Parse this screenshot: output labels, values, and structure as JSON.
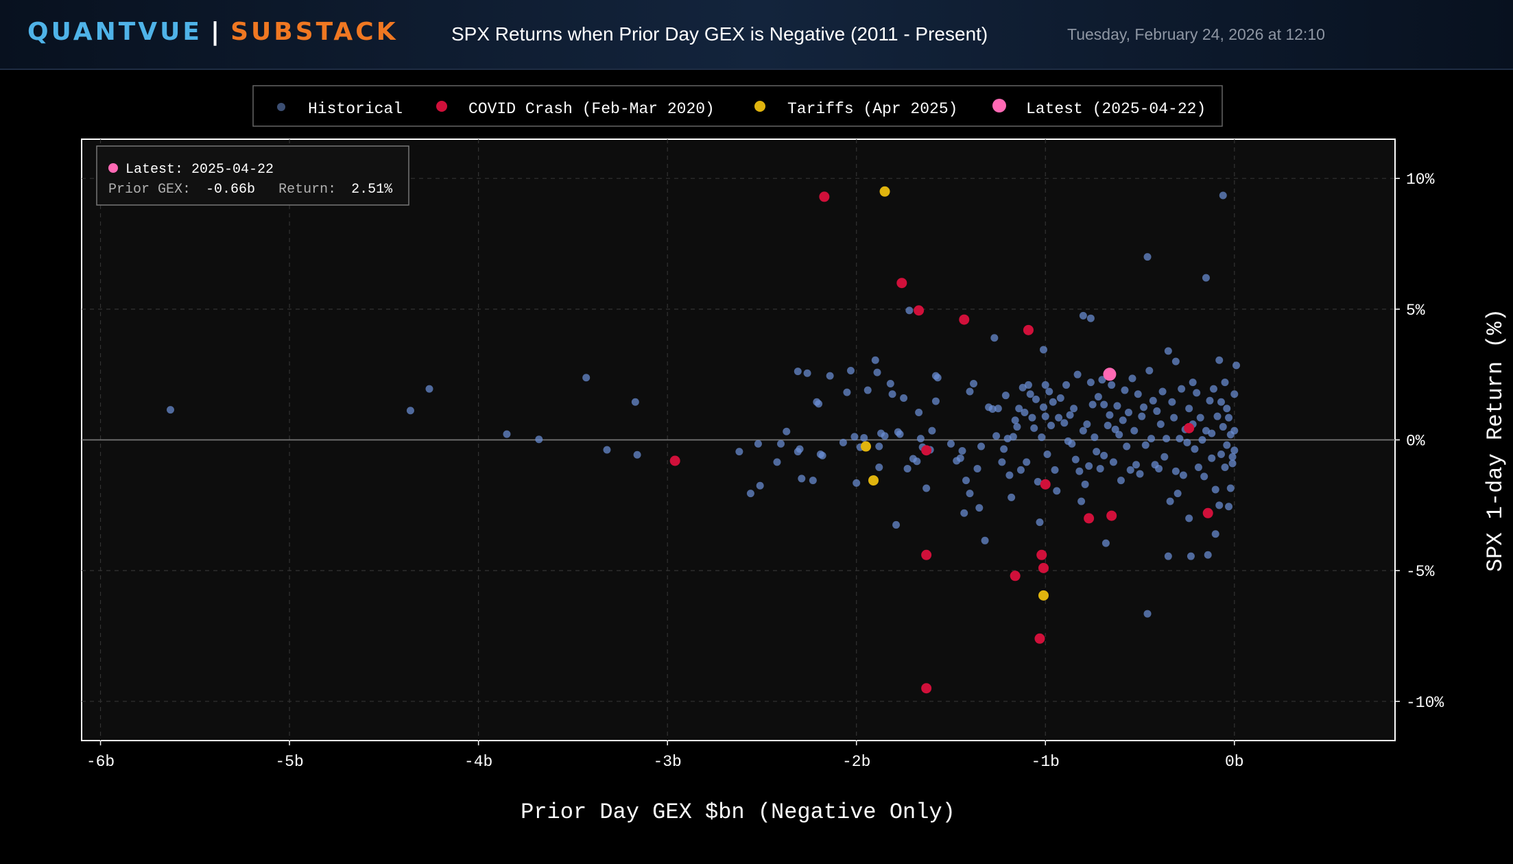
{
  "header": {
    "brand_primary": "QUANTVUE",
    "brand_separator": "|",
    "brand_secondary": "SUBSTACK",
    "title": "SPX Returns when Prior Day GEX is Negative (2011 - Present)",
    "timestamp": "Tuesday, February 24, 2026 at 12:10"
  },
  "colors": {
    "brand_primary": "#4fb3e8",
    "brand_secondary": "#f07822",
    "historical": "#6b8fd6",
    "covid": "#d0103a",
    "tariffs": "#e0b40e",
    "latest": "#ff69b4"
  },
  "chart_data": {
    "type": "scatter",
    "xlabel": "Prior Day GEX $bn (Negative Only)",
    "ylabel": "SPX 1-day Return (%)",
    "xlim": [
      -6.1,
      0.85
    ],
    "ylim": [
      -11.5,
      11.5
    ],
    "x_ticks": [
      -6,
      -5,
      -4,
      -3,
      -2,
      -1,
      0
    ],
    "x_tick_labels": [
      "-6b",
      "-5b",
      "-4b",
      "-3b",
      "-2b",
      "-1b",
      "0b"
    ],
    "y_ticks": [
      10,
      5,
      0,
      -5,
      -10
    ],
    "y_tick_labels": [
      "10%",
      "5%",
      "0%",
      "-5%",
      "-10%"
    ],
    "grid": true,
    "legend_position": "top-center",
    "annotation": {
      "title": "Latest: 2025-04-22",
      "gex_label": "Prior GEX:",
      "gex_value": "-0.66b",
      "return_label": "Return:",
      "return_value": "2.51%"
    },
    "series": [
      {
        "name": "Historical",
        "color": "#6b8fd6",
        "points": [
          [
            -5.63,
            1.15
          ],
          [
            -4.36,
            1.12
          ],
          [
            -4.26,
            1.95
          ],
          [
            -3.85,
            0.22
          ],
          [
            -3.68,
            0.02
          ],
          [
            -3.43,
            2.38
          ],
          [
            -3.32,
            -0.38
          ],
          [
            -3.17,
            1.45
          ],
          [
            -3.16,
            -0.57
          ],
          [
            -2.62,
            -0.45
          ],
          [
            -2.56,
            -2.05
          ],
          [
            -2.52,
            -0.15
          ],
          [
            -2.51,
            -1.75
          ],
          [
            -2.42,
            -0.85
          ],
          [
            -2.4,
            -0.15
          ],
          [
            -2.37,
            0.32
          ],
          [
            -2.31,
            -0.45
          ],
          [
            -2.31,
            2.62
          ],
          [
            -2.3,
            -0.35
          ],
          [
            -2.29,
            -1.48
          ],
          [
            -2.26,
            2.55
          ],
          [
            -2.23,
            -1.55
          ],
          [
            -2.21,
            1.45
          ],
          [
            -2.2,
            1.38
          ],
          [
            -2.19,
            -0.55
          ],
          [
            -2.18,
            -0.6
          ],
          [
            -2.14,
            2.45
          ],
          [
            -2.07,
            -0.1
          ],
          [
            -2.05,
            1.82
          ],
          [
            -2.03,
            2.65
          ],
          [
            -2.01,
            0.12
          ],
          [
            -2.0,
            -1.65
          ],
          [
            -1.98,
            -0.28
          ],
          [
            -1.96,
            0.08
          ],
          [
            -1.94,
            1.9
          ],
          [
            -1.9,
            3.05
          ],
          [
            -1.89,
            2.58
          ],
          [
            -1.88,
            -0.25
          ],
          [
            -1.88,
            -1.05
          ],
          [
            -1.87,
            0.25
          ],
          [
            -1.85,
            0.15
          ],
          [
            -1.82,
            2.15
          ],
          [
            -1.81,
            1.75
          ],
          [
            -1.79,
            -3.25
          ],
          [
            -1.78,
            0.3
          ],
          [
            -1.77,
            0.22
          ],
          [
            -1.75,
            1.6
          ],
          [
            -1.73,
            -1.1
          ],
          [
            -1.72,
            4.95
          ],
          [
            -1.7,
            -0.72
          ],
          [
            -1.68,
            -0.82
          ],
          [
            -1.67,
            1.05
          ],
          [
            -1.66,
            0.05
          ],
          [
            -1.65,
            -0.28
          ],
          [
            -1.63,
            -1.85
          ],
          [
            -1.61,
            -0.38
          ],
          [
            -1.6,
            0.35
          ],
          [
            -1.58,
            2.45
          ],
          [
            -1.58,
            1.48
          ],
          [
            -1.57,
            2.38
          ],
          [
            -1.5,
            -0.15
          ],
          [
            -1.47,
            -0.8
          ],
          [
            -1.45,
            -0.7
          ],
          [
            -1.44,
            -0.42
          ],
          [
            -1.43,
            -2.8
          ],
          [
            -1.42,
            -1.55
          ],
          [
            -1.4,
            1.85
          ],
          [
            -1.4,
            -2.05
          ],
          [
            -1.38,
            2.15
          ],
          [
            -1.36,
            -1.1
          ],
          [
            -1.35,
            -2.6
          ],
          [
            -1.34,
            -0.25
          ],
          [
            -1.32,
            -3.85
          ],
          [
            -1.3,
            1.25
          ],
          [
            -1.28,
            1.18
          ],
          [
            -1.27,
            3.9
          ],
          [
            -1.26,
            0.15
          ],
          [
            -1.25,
            1.2
          ],
          [
            -1.23,
            -0.85
          ],
          [
            -1.22,
            -0.35
          ],
          [
            -1.21,
            1.7
          ],
          [
            -1.2,
            0.05
          ],
          [
            -1.19,
            -1.35
          ],
          [
            -1.18,
            -2.2
          ],
          [
            -1.17,
            0.12
          ],
          [
            -1.16,
            0.75
          ],
          [
            -1.15,
            0.5
          ],
          [
            -1.14,
            1.2
          ],
          [
            -1.13,
            -1.15
          ],
          [
            -1.12,
            2.0
          ],
          [
            -1.11,
            1.05
          ],
          [
            -1.1,
            -0.85
          ],
          [
            -1.09,
            2.1
          ],
          [
            -1.08,
            1.75
          ],
          [
            -1.07,
            0.85
          ],
          [
            -1.06,
            0.45
          ],
          [
            -1.05,
            1.55
          ],
          [
            -1.04,
            -1.6
          ],
          [
            -1.03,
            -3.15
          ],
          [
            -1.02,
            0.1
          ],
          [
            -1.01,
            1.25
          ],
          [
            -1.01,
            3.45
          ],
          [
            -1.0,
            2.1
          ],
          [
            -1.0,
            0.9
          ],
          [
            -0.99,
            -0.55
          ],
          [
            -0.98,
            1.85
          ],
          [
            -0.97,
            0.55
          ],
          [
            -0.96,
            1.45
          ],
          [
            -0.95,
            -1.15
          ],
          [
            -0.94,
            -1.95
          ],
          [
            -0.93,
            0.85
          ],
          [
            -0.92,
            1.6
          ],
          [
            -0.9,
            0.65
          ],
          [
            -0.89,
            2.1
          ],
          [
            -0.88,
            -0.05
          ],
          [
            -0.87,
            0.95
          ],
          [
            -0.86,
            -0.15
          ],
          [
            -0.85,
            1.2
          ],
          [
            -0.84,
            -0.75
          ],
          [
            -0.83,
            2.5
          ],
          [
            -0.82,
            -1.2
          ],
          [
            -0.81,
            -2.35
          ],
          [
            -0.8,
            4.75
          ],
          [
            -0.8,
            0.35
          ],
          [
            -0.79,
            -1.7
          ],
          [
            -0.78,
            0.6
          ],
          [
            -0.77,
            -1.0
          ],
          [
            -0.76,
            2.2
          ],
          [
            -0.76,
            4.65
          ],
          [
            -0.75,
            1.35
          ],
          [
            -0.74,
            0.1
          ],
          [
            -0.73,
            -0.45
          ],
          [
            -0.72,
            1.65
          ],
          [
            -0.71,
            -1.1
          ],
          [
            -0.7,
            2.3
          ],
          [
            -0.69,
            -0.6
          ],
          [
            -0.69,
            1.35
          ],
          [
            -0.68,
            -3.95
          ],
          [
            -0.67,
            0.55
          ],
          [
            -0.66,
            0.95
          ],
          [
            -0.65,
            2.1
          ],
          [
            -0.64,
            -0.85
          ],
          [
            -0.63,
            0.4
          ],
          [
            -0.62,
            1.3
          ],
          [
            -0.61,
            0.2
          ],
          [
            -0.6,
            -1.55
          ],
          [
            -0.59,
            0.75
          ],
          [
            -0.58,
            1.9
          ],
          [
            -0.57,
            -0.25
          ],
          [
            -0.56,
            1.05
          ],
          [
            -0.55,
            -1.15
          ],
          [
            -0.54,
            2.35
          ],
          [
            -0.53,
            0.35
          ],
          [
            -0.52,
            -0.95
          ],
          [
            -0.51,
            1.75
          ],
          [
            -0.5,
            -1.3
          ],
          [
            -0.49,
            0.9
          ],
          [
            -0.48,
            1.25
          ],
          [
            -0.47,
            -0.2
          ],
          [
            -0.46,
            7.0
          ],
          [
            -0.46,
            -6.65
          ],
          [
            -0.45,
            2.65
          ],
          [
            -0.44,
            0.05
          ],
          [
            -0.43,
            1.5
          ],
          [
            -0.42,
            -0.95
          ],
          [
            -0.41,
            1.1
          ],
          [
            -0.4,
            -1.1
          ],
          [
            -0.39,
            0.6
          ],
          [
            -0.38,
            1.85
          ],
          [
            -0.37,
            -0.65
          ],
          [
            -0.36,
            0.05
          ],
          [
            -0.35,
            3.4
          ],
          [
            -0.35,
            -4.45
          ],
          [
            -0.34,
            -2.35
          ],
          [
            -0.33,
            1.45
          ],
          [
            -0.32,
            0.85
          ],
          [
            -0.31,
            -1.2
          ],
          [
            -0.31,
            3.0
          ],
          [
            -0.3,
            -2.05
          ],
          [
            -0.29,
            0.05
          ],
          [
            -0.28,
            1.95
          ],
          [
            -0.27,
            -1.35
          ],
          [
            -0.26,
            0.4
          ],
          [
            -0.25,
            -0.1
          ],
          [
            -0.24,
            1.2
          ],
          [
            -0.24,
            -3.0
          ],
          [
            -0.23,
            -4.45
          ],
          [
            -0.22,
            2.2
          ],
          [
            -0.22,
            0.6
          ],
          [
            -0.21,
            -0.35
          ],
          [
            -0.2,
            1.8
          ],
          [
            -0.19,
            -1.05
          ],
          [
            -0.18,
            0.85
          ],
          [
            -0.17,
            0.0
          ],
          [
            -0.16,
            -1.4
          ],
          [
            -0.15,
            6.2
          ],
          [
            -0.15,
            0.35
          ],
          [
            -0.14,
            -4.4
          ],
          [
            -0.13,
            1.5
          ],
          [
            -0.12,
            -0.7
          ],
          [
            -0.12,
            0.25
          ],
          [
            -0.11,
            1.95
          ],
          [
            -0.1,
            -1.9
          ],
          [
            -0.1,
            -3.6
          ],
          [
            -0.09,
            0.9
          ],
          [
            -0.08,
            -2.5
          ],
          [
            -0.08,
            3.05
          ],
          [
            -0.07,
            -0.55
          ],
          [
            -0.07,
            1.45
          ],
          [
            -0.06,
            9.35
          ],
          [
            -0.06,
            0.5
          ],
          [
            -0.05,
            2.2
          ],
          [
            -0.05,
            -1.05
          ],
          [
            -0.04,
            -0.2
          ],
          [
            -0.04,
            1.2
          ],
          [
            -0.03,
            0.85
          ],
          [
            -0.03,
            -2.55
          ],
          [
            -0.02,
            -1.85
          ],
          [
            -0.02,
            0.2
          ],
          [
            -0.01,
            -0.9
          ],
          [
            0.0,
            1.75
          ],
          [
            0.0,
            -0.4
          ],
          [
            0.0,
            0.35
          ],
          [
            0.01,
            2.85
          ],
          [
            -0.01,
            -0.65
          ]
        ]
      },
      {
        "name": "COVID Crash (Feb-Mar 2020)",
        "color": "#d0103a",
        "points": [
          [
            -2.17,
            9.3
          ],
          [
            -1.76,
            6.0
          ],
          [
            -1.67,
            4.95
          ],
          [
            -1.43,
            4.6
          ],
          [
            -1.09,
            4.2
          ],
          [
            -2.96,
            -0.8
          ],
          [
            -1.63,
            -0.4
          ],
          [
            -1.0,
            -1.7
          ],
          [
            -0.77,
            -3.0
          ],
          [
            -0.65,
            -2.9
          ],
          [
            -0.14,
            -2.8
          ],
          [
            -0.24,
            0.45
          ],
          [
            -1.63,
            -4.4
          ],
          [
            -1.02,
            -4.4
          ],
          [
            -1.01,
            -4.9
          ],
          [
            -1.16,
            -5.2
          ],
          [
            -1.03,
            -7.6
          ],
          [
            -1.63,
            -9.5
          ]
        ]
      },
      {
        "name": "Tariffs (Apr 2025)",
        "color": "#e0b40e",
        "points": [
          [
            -1.85,
            9.5
          ],
          [
            -1.95,
            -0.25
          ],
          [
            -1.91,
            -1.55
          ],
          [
            -1.01,
            -5.95
          ]
        ]
      },
      {
        "name": "Latest (2025-04-22)",
        "color": "#ff69b4",
        "points": [
          [
            -0.66,
            2.51
          ]
        ]
      }
    ]
  }
}
